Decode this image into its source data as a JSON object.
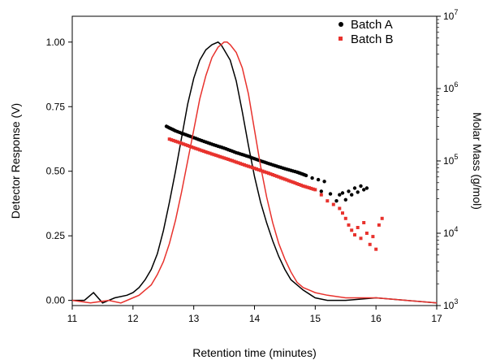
{
  "chart_data": {
    "type": "line",
    "xlabel": "Retention time (minutes)",
    "ylabel": "Detector Response (V)",
    "y2label": "Molar Mass (g/mol)",
    "xlim": [
      11,
      17
    ],
    "ylim": [
      -0.02,
      1.1
    ],
    "y2lim_log10": [
      3,
      7
    ],
    "y2_scale": "log",
    "grid": false,
    "legend_position": "top-right",
    "x_ticks": [
      "11",
      "12",
      "13",
      "14",
      "15",
      "16",
      "17"
    ],
    "y_ticks": [
      "0.00",
      "0.25",
      "0.50",
      "0.75",
      "1.00"
    ],
    "y2_ticks": [
      {
        "base": "10",
        "exp": "3",
        "value": 1000
      },
      {
        "base": "10",
        "exp": "4",
        "value": 10000
      },
      {
        "base": "10",
        "exp": "5",
        "value": 100000
      },
      {
        "base": "10",
        "exp": "6",
        "value": 1000000
      },
      {
        "base": "10",
        "exp": "7",
        "value": 10000000
      }
    ],
    "series": [
      {
        "name": "Batch A",
        "color": "#000000",
        "marker": "circle",
        "chromatogram": {
          "x": [
            11.0,
            11.2,
            11.35,
            11.5,
            11.7,
            11.9,
            12.0,
            12.1,
            12.2,
            12.3,
            12.4,
            12.5,
            12.6,
            12.7,
            12.8,
            12.9,
            13.0,
            13.1,
            13.2,
            13.3,
            13.4,
            13.45,
            13.5,
            13.6,
            13.7,
            13.8,
            13.9,
            14.0,
            14.1,
            14.2,
            14.3,
            14.4,
            14.5,
            14.6,
            14.7,
            14.8,
            15.0,
            15.2,
            15.5,
            16.0,
            16.5,
            17.0
          ],
          "y": [
            0.0,
            0.0,
            0.03,
            -0.01,
            0.01,
            0.02,
            0.03,
            0.05,
            0.08,
            0.12,
            0.18,
            0.27,
            0.38,
            0.5,
            0.63,
            0.76,
            0.86,
            0.93,
            0.97,
            0.99,
            1.0,
            0.99,
            0.97,
            0.93,
            0.85,
            0.73,
            0.6,
            0.48,
            0.38,
            0.3,
            0.23,
            0.17,
            0.12,
            0.08,
            0.06,
            0.04,
            0.01,
            0.0,
            0.0,
            0.01,
            0.0,
            -0.01
          ]
        },
        "molar_mass": {
          "x": [
            12.55,
            12.7,
            12.9,
            13.1,
            13.3,
            13.5,
            13.7,
            13.9,
            14.1,
            14.3,
            14.5,
            14.7,
            14.85,
            14.95,
            15.05,
            15.1,
            15.15,
            15.25,
            15.35,
            15.4,
            15.45,
            15.5,
            15.55,
            15.6,
            15.65,
            15.7,
            15.75,
            15.8,
            15.85
          ],
          "y": [
            300000,
            260000,
            225000,
            195000,
            170000,
            150000,
            130000,
            115000,
            100000,
            88000,
            78000,
            70000,
            63000,
            58000,
            55000,
            38000,
            52000,
            35000,
            28000,
            34000,
            36000,
            29000,
            38000,
            34000,
            42000,
            37000,
            45000,
            40000,
            42000
          ]
        }
      },
      {
        "name": "Batch B",
        "color": "#e8322d",
        "marker": "square",
        "chromatogram": {
          "x": [
            11.0,
            11.3,
            11.6,
            11.8,
            12.0,
            12.1,
            12.2,
            12.3,
            12.4,
            12.5,
            12.6,
            12.7,
            12.8,
            12.9,
            13.0,
            13.1,
            13.2,
            13.3,
            13.4,
            13.5,
            13.55,
            13.6,
            13.7,
            13.8,
            13.9,
            14.0,
            14.1,
            14.2,
            14.3,
            14.4,
            14.5,
            14.6,
            14.7,
            14.8,
            14.9,
            15.0,
            15.2,
            15.5,
            16.0,
            16.5,
            17.0
          ],
          "y": [
            0.0,
            -0.01,
            0.0,
            -0.01,
            0.01,
            0.02,
            0.04,
            0.06,
            0.1,
            0.15,
            0.22,
            0.31,
            0.42,
            0.54,
            0.66,
            0.78,
            0.87,
            0.94,
            0.98,
            1.0,
            1.0,
            0.99,
            0.96,
            0.9,
            0.8,
            0.66,
            0.52,
            0.4,
            0.3,
            0.22,
            0.16,
            0.11,
            0.07,
            0.05,
            0.04,
            0.03,
            0.02,
            0.01,
            0.01,
            0.0,
            -0.01
          ]
        },
        "molar_mass": {
          "x": [
            12.6,
            12.8,
            13.0,
            13.2,
            13.4,
            13.6,
            13.8,
            14.0,
            14.2,
            14.4,
            14.6,
            14.8,
            15.0,
            15.1,
            15.2,
            15.3,
            15.4,
            15.45,
            15.5,
            15.55,
            15.6,
            15.65,
            15.7,
            15.75,
            15.8,
            15.85,
            15.9,
            15.95,
            16.0,
            16.05,
            16.1
          ],
          "y": [
            200000,
            175000,
            152000,
            133000,
            117000,
            103000,
            90000,
            79000,
            69000,
            60000,
            52000,
            45000,
            40000,
            34000,
            28000,
            25000,
            22000,
            19000,
            16000,
            13000,
            11000,
            9500,
            12000,
            8500,
            14000,
            10000,
            7000,
            9000,
            6000,
            13000,
            16000
          ]
        }
      }
    ]
  }
}
